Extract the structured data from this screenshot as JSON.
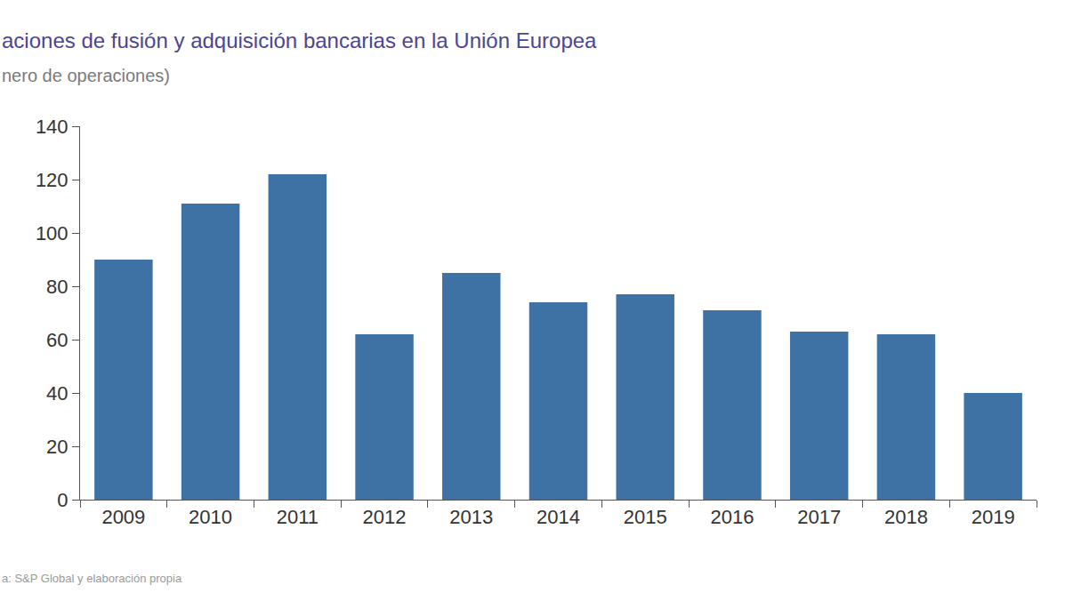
{
  "chart_data": {
    "type": "bar",
    "title": "aciones de fusión y adquisición bancarias en la Unión Europea",
    "subtitle": "nero de operaciones)",
    "source": "a: S&P Global y elaboración propia",
    "categories": [
      "2009",
      "2010",
      "2011",
      "2012",
      "2013",
      "2014",
      "2015",
      "2016",
      "2017",
      "2018",
      "2019"
    ],
    "values": [
      90,
      111,
      122,
      62,
      85,
      74,
      77,
      71,
      63,
      62,
      40
    ],
    "color": "#3e72a4",
    "ylim": [
      0,
      140
    ],
    "yticks": [
      0,
      20,
      40,
      60,
      80,
      100,
      120,
      140
    ],
    "grid": false
  }
}
